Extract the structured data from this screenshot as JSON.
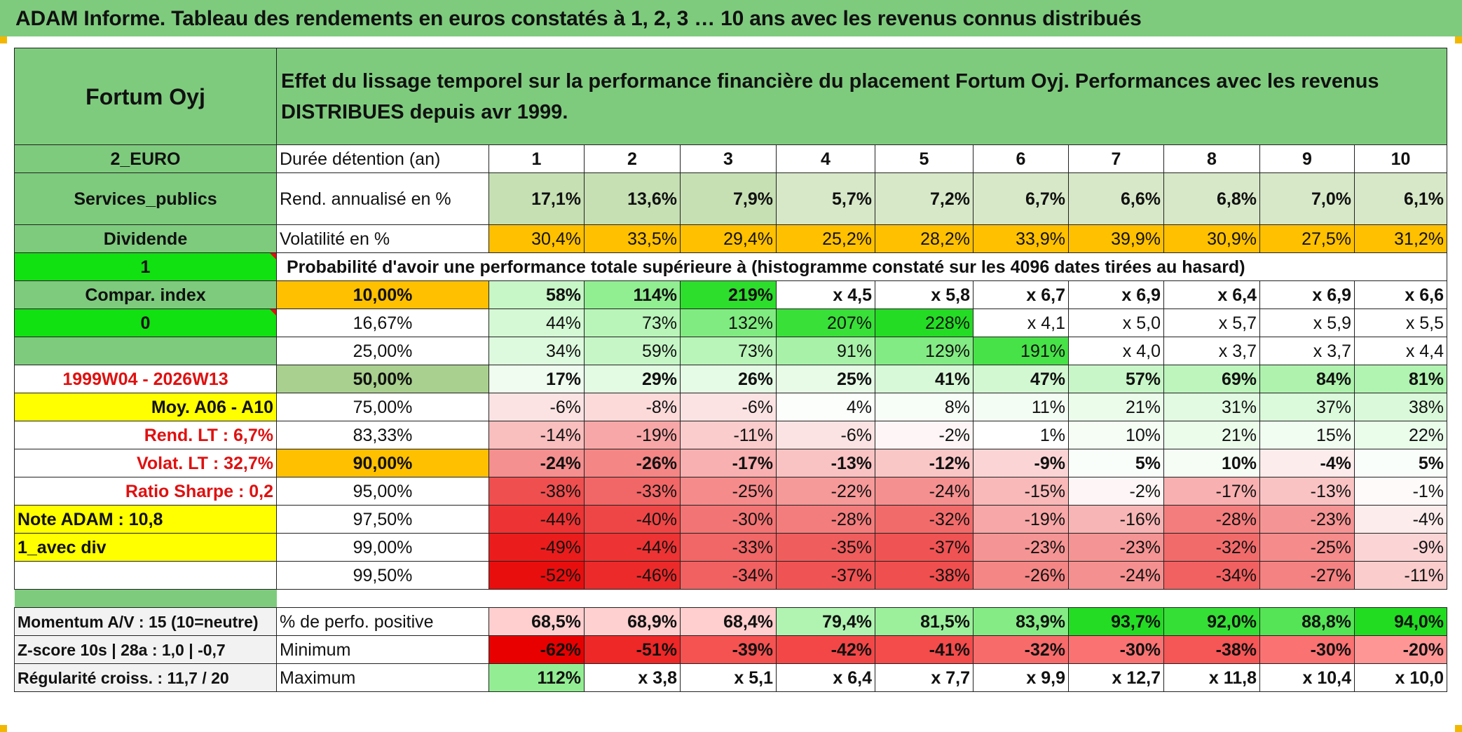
{
  "title": "ADAM Informe. Tableau des rendements en euros constatés à 1, 2, 3 … 10 ans avec les revenus connus distribués",
  "colors": {
    "header_green": "#7ecb7e",
    "bright_green": "#11e011",
    "orange": "#ffc000",
    "yellow": "#ffff00",
    "red_text": "#e01010",
    "pale_green": "#c6e0b4",
    "mid_green": "#a9d08e"
  },
  "header": {
    "asset_name": "Fortum Oyj",
    "description": "Effet du lissage temporel sur la performance financière du placement Fortum Oyj. Performances avec les revenus DISTRIBUES depuis avr 1999."
  },
  "info": {
    "currency": "2_EURO",
    "sector": "Services_publics",
    "dividend": "Dividende",
    "flag_1": "1",
    "compar_index": "Compar. index",
    "flag_0": "0",
    "period": "1999W04 - 2026W13",
    "avg_label": "Moy. A06 - A10",
    "rend_lt": "Rend. LT :    6,7%",
    "volat_lt": "Volat. LT :   32,7%",
    "ratio_sharpe": "Ratio Sharpe :    0,2",
    "note_adam": "Note ADAM : 10,8",
    "avec_div": "1_avec div",
    "momentum": "Momentum A/V : 15 (10=neutre)",
    "zscore": "Z-score 10s | 28a : 1,0 | -0,7",
    "regularite": "Régularité croiss. : 11,7 / 20"
  },
  "holding": {
    "label": "Durée détention (an)",
    "years": [
      "1",
      "2",
      "3",
      "4",
      "5",
      "6",
      "7",
      "8",
      "9",
      "10"
    ]
  },
  "rend": {
    "label": "Rend. annualisé en %",
    "values": [
      "17,1%",
      "13,6%",
      "7,9%",
      "5,7%",
      "7,2%",
      "6,7%",
      "6,6%",
      "6,8%",
      "7,0%",
      "6,1%"
    ]
  },
  "volat": {
    "label": "Volatilité en %",
    "values": [
      "30,4%",
      "33,5%",
      "29,4%",
      "25,2%",
      "28,2%",
      "33,9%",
      "39,9%",
      "30,9%",
      "27,5%",
      "31,2%"
    ]
  },
  "prob_label": "Probabilité d'avoir une performance totale supérieure à (histogramme constaté sur les 4096 dates tirées au hasard)",
  "quantiles": [
    {
      "p": "10,00%",
      "values": [
        "58%",
        "114%",
        "219%",
        "x 4,5",
        "x 5,8",
        "x 6,7",
        "x 6,9",
        "x 6,4",
        "x 6,9",
        "x 6,6"
      ]
    },
    {
      "p": "16,67%",
      "values": [
        "44%",
        "73%",
        "132%",
        "207%",
        "228%",
        "x 4,1",
        "x 5,0",
        "x 5,7",
        "x 5,9",
        "x 5,5"
      ]
    },
    {
      "p": "25,00%",
      "values": [
        "34%",
        "59%",
        "73%",
        "91%",
        "129%",
        "191%",
        "x 4,0",
        "x 3,7",
        "x 3,7",
        "x 4,4"
      ]
    },
    {
      "p": "50,00%",
      "values": [
        "17%",
        "29%",
        "26%",
        "25%",
        "41%",
        "47%",
        "57%",
        "69%",
        "84%",
        "81%"
      ]
    },
    {
      "p": "75,00%",
      "values": [
        "-6%",
        "-8%",
        "-6%",
        "4%",
        "8%",
        "11%",
        "21%",
        "31%",
        "37%",
        "38%"
      ]
    },
    {
      "p": "83,33%",
      "values": [
        "-14%",
        "-19%",
        "-11%",
        "-6%",
        "-2%",
        "1%",
        "10%",
        "21%",
        "15%",
        "22%"
      ]
    },
    {
      "p": "90,00%",
      "values": [
        "-24%",
        "-26%",
        "-17%",
        "-13%",
        "-12%",
        "-9%",
        "5%",
        "10%",
        "-4%",
        "5%"
      ]
    },
    {
      "p": "95,00%",
      "values": [
        "-38%",
        "-33%",
        "-25%",
        "-22%",
        "-24%",
        "-15%",
        "-2%",
        "-17%",
        "-13%",
        "-1%"
      ]
    },
    {
      "p": "97,50%",
      "values": [
        "-44%",
        "-40%",
        "-30%",
        "-28%",
        "-32%",
        "-19%",
        "-16%",
        "-28%",
        "-23%",
        "-4%"
      ]
    },
    {
      "p": "99,00%",
      "values": [
        "-49%",
        "-44%",
        "-33%",
        "-35%",
        "-37%",
        "-23%",
        "-23%",
        "-32%",
        "-25%",
        "-9%"
      ]
    },
    {
      "p": "99,50%",
      "values": [
        "-52%",
        "-46%",
        "-34%",
        "-37%",
        "-38%",
        "-26%",
        "-24%",
        "-34%",
        "-27%",
        "-11%"
      ]
    }
  ],
  "pos": {
    "label": "% de perfo. positive",
    "values": [
      "68,5%",
      "68,9%",
      "68,4%",
      "79,4%",
      "81,5%",
      "83,9%",
      "93,7%",
      "92,0%",
      "88,8%",
      "94,0%"
    ]
  },
  "min": {
    "label": "Minimum",
    "values": [
      "-62%",
      "-51%",
      "-39%",
      "-42%",
      "-41%",
      "-32%",
      "-30%",
      "-38%",
      "-30%",
      "-20%"
    ]
  },
  "max": {
    "label": "Maximum",
    "values": [
      "112%",
      "x 3,8",
      "x 5,1",
      "x 6,4",
      "x 7,7",
      "x 9,9",
      "x 12,7",
      "x 11,8",
      "x 10,4",
      "x 10,0"
    ]
  }
}
